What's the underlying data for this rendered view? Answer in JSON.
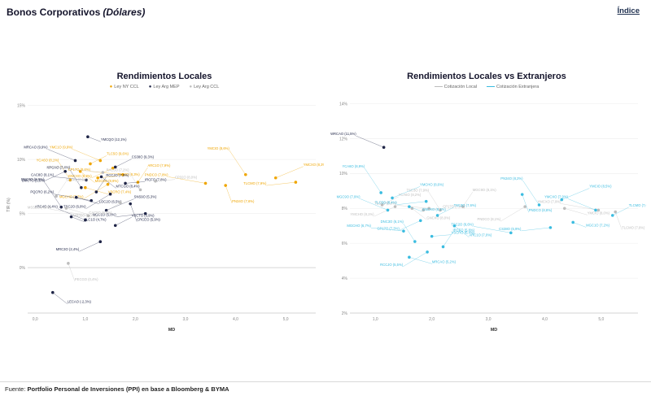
{
  "page": {
    "title": "Bonos Corporativos",
    "title_suffix": "(Dólares)",
    "index_link": "Índice",
    "footer_prefix": "Fuente: ",
    "footer_source": "Portfolio Personal de Inversiones (PPI) en base a Bloomberg & BYMA"
  },
  "chart_data": [
    {
      "type": "scatter",
      "title": "Rendimientos Locales",
      "xlabel": "MD",
      "ylabel": "TIR (%)",
      "xlim": [
        -0.15,
        5.6
      ],
      "ylim": [
        -4.2,
        15.8
      ],
      "xticks": [
        {
          "v": 0,
          "l": "0,0"
        },
        {
          "v": 1,
          "l": "1,0"
        },
        {
          "v": 2,
          "l": "2,0"
        },
        {
          "v": 3,
          "l": "3,0"
        },
        {
          "v": 4,
          "l": "4,0"
        },
        {
          "v": 5,
          "l": "5,0"
        }
      ],
      "yticks": [
        {
          "v": 15,
          "l": "15%"
        },
        {
          "v": 10,
          "l": "10%"
        },
        {
          "v": 5,
          "l": "5%"
        },
        {
          "v": 0,
          "l": "0%"
        }
      ],
      "legend_marker": "dot",
      "series": [
        {
          "name": "Ley NY CCL",
          "color": "#EFA500",
          "points": [
            {
              "label": "YMC1O (9,9%)",
              "x": 1.3,
              "y": 9.9
            },
            {
              "label": "TLC5O (9,6%)",
              "x": 1.1,
              "y": 9.6
            },
            {
              "label": "GNCXO (9,2%)",
              "x": 1.55,
              "y": 9.2
            },
            {
              "label": "MGC9O (8,9%)",
              "x": 0.9,
              "y": 8.9
            },
            {
              "label": "CP17O (8,6%)",
              "x": 1.75,
              "y": 8.6
            },
            {
              "label": "TSC3O (8,3%)",
              "x": 1.25,
              "y": 8.3
            },
            {
              "label": "YCA6O (8,1%)",
              "x": 0.7,
              "y": 8.1
            },
            {
              "label": "ARC1O (7,9%)",
              "x": 2.05,
              "y": 7.9
            },
            {
              "label": "MGCHO (7,7%)",
              "x": 1.45,
              "y": 7.7
            },
            {
              "label": "VSCRO (7,4%)",
              "x": 1.0,
              "y": 7.4
            },
            {
              "label": "PNDCO (7,8%)",
              "x": 3.4,
              "y": 7.8
            },
            {
              "label": "PN34O (7,6%)",
              "x": 3.8,
              "y": 7.6
            },
            {
              "label": "YMCIO (8,6%)",
              "x": 4.2,
              "y": 8.6
            },
            {
              "label": "YMCXO (8,3%)",
              "x": 4.8,
              "y": 8.3
            },
            {
              "label": "TLCMO (7,9%)",
              "x": 5.2,
              "y": 7.9
            }
          ]
        },
        {
          "name": "Ley Arg MEP",
          "color": "#1F2547",
          "points": [
            {
              "label": "YMCQO (12,1%)",
              "x": 1.05,
              "y": 12.1
            },
            {
              "label": "MRCAO (9,9%)",
              "x": 0.8,
              "y": 9.9
            },
            {
              "label": "CS38O (9,3%)",
              "x": 1.6,
              "y": 9.3
            },
            {
              "label": "DNC3O (8,9%)",
              "x": 0.6,
              "y": 8.9
            },
            {
              "label": "MTCGO (8,4%)",
              "x": 1.32,
              "y": 8.4
            },
            {
              "label": "CAC8O (8,1%)",
              "x": 1.02,
              "y": 8.1
            },
            {
              "label": "IRCFO (7,8%)",
              "x": 1.8,
              "y": 7.8
            },
            {
              "label": "NPCAO (7,4%)",
              "x": 0.92,
              "y": 7.4
            },
            {
              "label": "RCCJO (7,0%)",
              "x": 1.22,
              "y": 7.0
            },
            {
              "label": "TSC2O (6,8%)",
              "x": 1.5,
              "y": 6.8
            },
            {
              "label": "LOC2O (6,5%)",
              "x": 0.82,
              "y": 6.5
            },
            {
              "label": "PQCRO (6,2%)",
              "x": 1.12,
              "y": 6.2
            },
            {
              "label": "CRCEO (5,9%)",
              "x": 1.9,
              "y": 5.9
            },
            {
              "label": "BMC7O (5,6%)",
              "x": 0.52,
              "y": 5.6
            },
            {
              "label": "SNS9O (5,3%)",
              "x": 1.42,
              "y": 5.3
            },
            {
              "label": "MGC1O (5,0%)",
              "x": 2.2,
              "y": 5.0
            },
            {
              "label": "TLC1O (4,7%)",
              "x": 0.72,
              "y": 4.7
            },
            {
              "label": "ARC4O (4,4%)",
              "x": 1.0,
              "y": 4.4
            },
            {
              "label": "VSCTO (3,9%)",
              "x": 1.6,
              "y": 3.9
            },
            {
              "label": "MRC3O (2,4%)",
              "x": 1.3,
              "y": 2.4
            },
            {
              "label": "LECAO (-2,3%)",
              "x": 0.35,
              "y": -2.3
            }
          ]
        },
        {
          "name": "Ley Arg CCL",
          "color": "#BDBDBD",
          "points": [
            {
              "label": "GN40O (8,8%)",
              "x": 1.35,
              "y": 8.8
            },
            {
              "label": "CP32O (8,0%)",
              "x": 2.4,
              "y": 8.0
            },
            {
              "label": "RAC5O (7,2%)",
              "x": 2.1,
              "y": 7.2
            },
            {
              "label": "SA24O (6,6%)",
              "x": 0.42,
              "y": 6.6
            },
            {
              "label": "MR35O (6,0%)",
              "x": 1.7,
              "y": 6.0
            },
            {
              "label": "CAC5O (5,5%)",
              "x": 0.62,
              "y": 5.5
            },
            {
              "label": "MSSEO (4,8%)",
              "x": 1.06,
              "y": 4.8
            },
            {
              "label": "PECGO (0,4%)",
              "x": 0.66,
              "y": 0.4
            }
          ]
        }
      ]
    },
    {
      "type": "scatter",
      "title": "Rendimientos Locales vs Extranjeros",
      "xlabel": "MD",
      "ylabel": "",
      "xlim": [
        0.55,
        5.65
      ],
      "ylim": [
        2,
        14.4
      ],
      "xticks": [
        {
          "v": 1,
          "l": "1,0"
        },
        {
          "v": 2,
          "l": "2,0"
        },
        {
          "v": 3,
          "l": "3,0"
        },
        {
          "v": 4,
          "l": "4,0"
        },
        {
          "v": 5,
          "l": "5,0"
        }
      ],
      "yticks": [
        {
          "v": 14,
          "l": "14%"
        },
        {
          "v": 12,
          "l": "12%"
        },
        {
          "v": 10,
          "l": "10%"
        },
        {
          "v": 8,
          "l": "8%"
        },
        {
          "v": 6,
          "l": "6%"
        },
        {
          "v": 4,
          "l": "4%"
        },
        {
          "v": 2,
          "l": "2%"
        }
      ],
      "legend_marker": "line",
      "series": [
        {
          "name": "Cotización Local",
          "color": "#BDBDBD",
          "points": [
            {
              "label": "WRCAO (11,5%)",
              "x": 1.15,
              "y": 11.5,
              "color": "#1F2547"
            },
            {
              "label": "YCA6O (8,2%)",
              "x": 1.12,
              "y": 8.2
            },
            {
              "label": "YMCHO (8,1%)",
              "x": 1.35,
              "y": 8.1
            },
            {
              "label": "GNCXO (8,0%)",
              "x": 1.65,
              "y": 8.0
            },
            {
              "label": "TLC5O (8,0%)",
              "x": 1.95,
              "y": 8.0
            },
            {
              "label": "CP17O (7,9%)",
              "x": 1.85,
              "y": 7.9
            },
            {
              "label": "TSC3O (7,9%)",
              "x": 2.15,
              "y": 7.9
            },
            {
              "label": "MGC9O (8,1%)",
              "x": 2.55,
              "y": 8.1
            },
            {
              "label": "PNDCO (8,1%)",
              "x": 3.65,
              "y": 8.1
            },
            {
              "label": "YMCIO (8,0%)",
              "x": 4.35,
              "y": 8.0
            },
            {
              "label": "YMCXO (7,9%)",
              "x": 4.95,
              "y": 7.9
            },
            {
              "label": "TLCMO (7,8%)",
              "x": 5.25,
              "y": 7.8
            }
          ]
        },
        {
          "name": "Cotización Extranjera",
          "color": "#3BBCE0",
          "points": [
            {
              "label": "YCA6O (8,9%)",
              "x": 1.1,
              "y": 8.9
            },
            {
              "label": "YMCHO (8,6%)",
              "x": 1.3,
              "y": 8.6
            },
            {
              "label": "TLC5O (8,4%)",
              "x": 1.9,
              "y": 8.4
            },
            {
              "label": "GNCXO (8,1%)",
              "x": 1.6,
              "y": 8.1
            },
            {
              "label": "MGC9O (7,9%)",
              "x": 1.22,
              "y": 7.9
            },
            {
              "label": "TSC3O (7,6%)",
              "x": 2.1,
              "y": 7.6
            },
            {
              "label": "CP17O (7,3%)",
              "x": 1.8,
              "y": 7.3
            },
            {
              "label": "ARC1O (7,0%)",
              "x": 2.4,
              "y": 7.0
            },
            {
              "label": "MGCHO (6,7%)",
              "x": 1.5,
              "y": 6.7
            },
            {
              "label": "VSCRO (6,4%)",
              "x": 2.0,
              "y": 6.4
            },
            {
              "label": "DNC3O (6,1%)",
              "x": 1.7,
              "y": 6.1
            },
            {
              "label": "IRCFO (5,8%)",
              "x": 2.2,
              "y": 5.8
            },
            {
              "label": "RCCJO (5,5%)",
              "x": 1.92,
              "y": 5.5
            },
            {
              "label": "MRCAO (5,2%)",
              "x": 1.6,
              "y": 5.2
            },
            {
              "label": "TSC2O (6,6%)",
              "x": 3.4,
              "y": 6.6
            },
            {
              "label": "PNDCO (8,8%)",
              "x": 3.6,
              "y": 8.8
            },
            {
              "label": "PN34O (8,2%)",
              "x": 3.9,
              "y": 8.2
            },
            {
              "label": "YMCIO (8,5%)",
              "x": 4.3,
              "y": 8.5
            },
            {
              "label": "CS38O (6,9%)",
              "x": 4.1,
              "y": 6.9
            },
            {
              "label": "MGC1O (7,2%)",
              "x": 4.5,
              "y": 7.2
            },
            {
              "label": "YMCXO (7,9%)",
              "x": 4.9,
              "y": 7.9
            },
            {
              "label": "TLCMO (7,6%)",
              "x": 5.2,
              "y": 7.6
            }
          ]
        }
      ]
    }
  ]
}
